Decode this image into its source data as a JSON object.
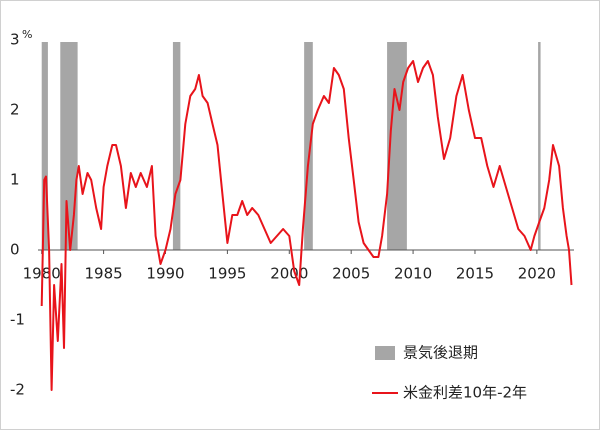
{
  "chart_data": {
    "type": "line",
    "y_unit": "%",
    "xlim": [
      1979.7,
      2023
    ],
    "xticks": [
      1980,
      1985,
      1990,
      1995,
      2000,
      2005,
      2010,
      2015,
      2020
    ],
    "ylim": [
      -2,
      3
    ],
    "yticks": [
      -2,
      -1,
      0,
      1,
      2,
      3
    ],
    "legend": "bottom-right",
    "shading": {
      "name": "景気後退期",
      "color": "#a6a6a6",
      "start": [
        1980.0,
        1981.5,
        1990.6,
        2001.2,
        2007.9,
        2020.1
      ],
      "end": [
        1980.5,
        1982.9,
        1991.2,
        2001.9,
        2009.5,
        2020.3
      ]
    },
    "series": [
      {
        "name": "米金利差10年-2年",
        "color": "#e8141b",
        "x": [
          1980.0,
          1980.2,
          1980.35,
          1980.6,
          1980.8,
          1981.0,
          1981.3,
          1981.6,
          1981.8,
          1982.0,
          1982.3,
          1982.6,
          1982.8,
          1983.0,
          1983.3,
          1983.7,
          1984.0,
          1984.4,
          1984.8,
          1985.0,
          1985.3,
          1985.7,
          1986.0,
          1986.4,
          1986.8,
          1987.2,
          1987.6,
          1988.0,
          1988.5,
          1988.9,
          1989.2,
          1989.6,
          1990.0,
          1990.4,
          1990.8,
          1991.2,
          1991.6,
          1992.0,
          1992.4,
          1992.7,
          1993.0,
          1993.4,
          1993.8,
          1994.2,
          1994.6,
          1995.0,
          1995.4,
          1995.8,
          1996.2,
          1996.6,
          1997.0,
          1997.5,
          1998.0,
          1998.5,
          1999.0,
          1999.5,
          2000.0,
          2000.4,
          2000.8,
          2001.1,
          2001.5,
          2001.9,
          2002.3,
          2002.8,
          2003.2,
          2003.6,
          2004.0,
          2004.4,
          2004.8,
          2005.2,
          2005.6,
          2006.0,
          2006.4,
          2006.8,
          2007.2,
          2007.5,
          2007.9,
          2008.2,
          2008.5,
          2008.9,
          2009.2,
          2009.6,
          2010.0,
          2010.4,
          2010.8,
          2011.2,
          2011.6,
          2012.0,
          2012.5,
          2013.0,
          2013.5,
          2014.0,
          2014.5,
          2015.0,
          2015.5,
          2016.0,
          2016.5,
          2017.0,
          2017.5,
          2018.0,
          2018.5,
          2019.0,
          2019.5,
          2019.8,
          2020.2,
          2020.6,
          2021.0,
          2021.3,
          2021.8,
          2022.1,
          2022.4,
          2022.6,
          2022.8
        ],
        "values": [
          -0.8,
          1.0,
          1.05,
          0.0,
          -2.0,
          -0.5,
          -1.3,
          -0.2,
          -1.4,
          0.7,
          0.0,
          0.5,
          1.0,
          1.2,
          0.8,
          1.1,
          1.0,
          0.6,
          0.3,
          0.9,
          1.2,
          1.5,
          1.5,
          1.2,
          0.6,
          1.1,
          0.9,
          1.1,
          0.9,
          1.2,
          0.2,
          -0.2,
          0.0,
          0.3,
          0.8,
          1.0,
          1.8,
          2.2,
          2.3,
          2.5,
          2.2,
          2.1,
          1.8,
          1.5,
          0.8,
          0.1,
          0.5,
          0.5,
          0.7,
          0.5,
          0.6,
          0.5,
          0.3,
          0.1,
          0.2,
          0.3,
          0.2,
          -0.3,
          -0.5,
          0.3,
          1.2,
          1.8,
          2.0,
          2.2,
          2.1,
          2.6,
          2.5,
          2.3,
          1.6,
          1.0,
          0.4,
          0.1,
          0.0,
          -0.1,
          -0.1,
          0.2,
          0.8,
          1.7,
          2.3,
          2.0,
          2.4,
          2.6,
          2.7,
          2.4,
          2.6,
          2.7,
          2.5,
          1.9,
          1.3,
          1.6,
          2.2,
          2.5,
          2.0,
          1.6,
          1.6,
          1.2,
          0.9,
          1.2,
          0.9,
          0.6,
          0.3,
          0.2,
          0.0,
          0.2,
          0.4,
          0.6,
          1.0,
          1.5,
          1.2,
          0.6,
          0.2,
          0.0,
          -0.5
        ]
      }
    ]
  }
}
